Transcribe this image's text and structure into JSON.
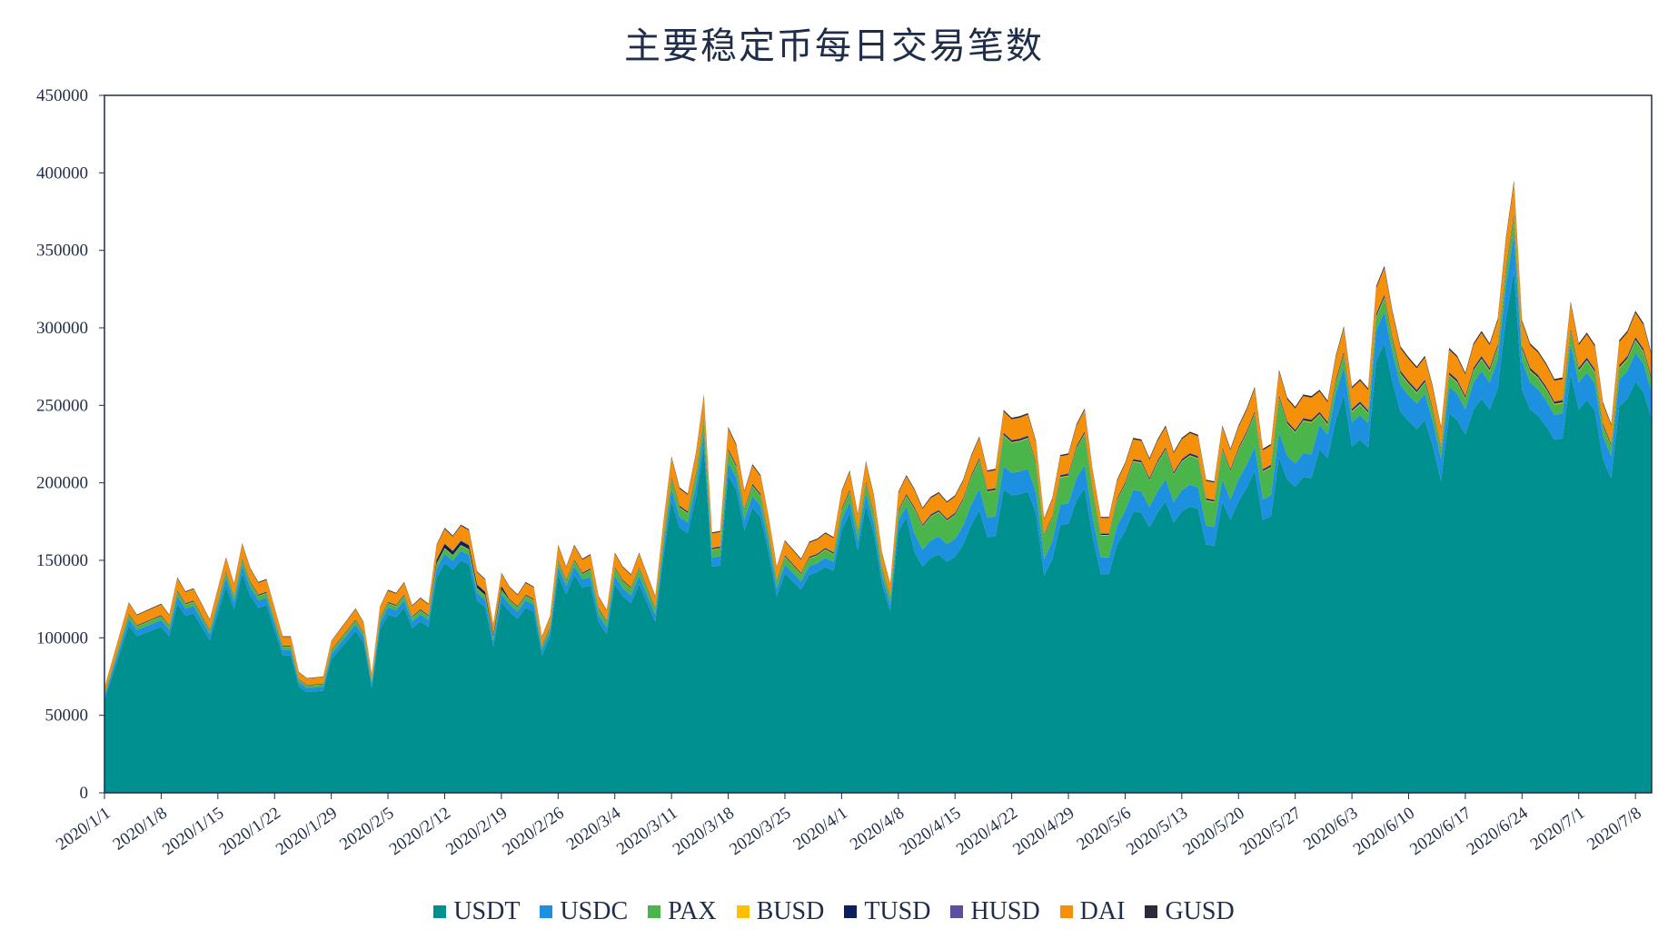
{
  "chart_data": {
    "type": "area",
    "stacked": true,
    "title": "主要稳定币每日交易笔数",
    "xlabel": "",
    "ylabel": "",
    "ylim": [
      0,
      450000
    ],
    "y_ticks": [
      "0",
      "50000",
      "100000",
      "150000",
      "200000",
      "250000",
      "300000",
      "350000",
      "400000",
      "450000"
    ],
    "x_tick_labels": [
      "2020/1/1",
      "2020/1/8",
      "2020/1/15",
      "2020/1/22",
      "2020/1/29",
      "2020/2/5",
      "2020/2/12",
      "2020/2/19",
      "2020/2/26",
      "2020/3/4",
      "2020/3/11",
      "2020/3/18",
      "2020/3/25",
      "2020/4/1",
      "2020/4/8",
      "2020/4/15",
      "2020/4/22",
      "2020/4/29",
      "2020/5/6",
      "2020/5/13",
      "2020/5/20",
      "2020/5/27",
      "2020/6/3",
      "2020/6/10",
      "2020/6/17",
      "2020/6/24",
      "2020/7/1",
      "2020/7/8"
    ],
    "x_start": "2020/1/1",
    "x_end": "2020/7/10",
    "legend_position": "bottom",
    "grid": false,
    "colors": {
      "USDT": "#009090",
      "USDC": "#1e90e0",
      "PAX": "#4ab54a",
      "BUSD": "#ffc000",
      "TUSD": "#0c1f5c",
      "HUSD": "#5a4fa0",
      "DAI": "#f5900a",
      "GUSD": "#2b2b3a"
    },
    "series_names": [
      "USDT",
      "USDC",
      "PAX",
      "BUSD",
      "TUSD",
      "HUSD",
      "DAI",
      "GUSD"
    ],
    "totals_anchor": [
      [
        0,
        68000
      ],
      [
        3,
        123000
      ],
      [
        4,
        115000
      ],
      [
        7,
        122000
      ],
      [
        8,
        115000
      ],
      [
        9,
        139000
      ],
      [
        10,
        130000
      ],
      [
        11,
        132000
      ],
      [
        12,
        122000
      ],
      [
        13,
        112000
      ],
      [
        15,
        152000
      ],
      [
        16,
        135000
      ],
      [
        17,
        161000
      ],
      [
        18,
        145000
      ],
      [
        19,
        136000
      ],
      [
        20,
        138000
      ],
      [
        22,
        101000
      ],
      [
        23,
        101000
      ],
      [
        24,
        78000
      ],
      [
        25,
        74000
      ],
      [
        27,
        75000
      ],
      [
        28,
        98000
      ],
      [
        31,
        119000
      ],
      [
        32,
        110000
      ],
      [
        33,
        77000
      ],
      [
        34,
        120000
      ],
      [
        35,
        131000
      ],
      [
        36,
        129000
      ],
      [
        37,
        136000
      ],
      [
        38,
        121000
      ],
      [
        39,
        126000
      ],
      [
        40,
        122000
      ],
      [
        41,
        160000
      ],
      [
        42,
        171000
      ],
      [
        43,
        166000
      ],
      [
        44,
        173000
      ],
      [
        45,
        170000
      ],
      [
        46,
        143000
      ],
      [
        47,
        138000
      ],
      [
        48,
        109000
      ],
      [
        49,
        142000
      ],
      [
        50,
        133000
      ],
      [
        51,
        128000
      ],
      [
        52,
        136000
      ],
      [
        53,
        133000
      ],
      [
        54,
        101000
      ],
      [
        55,
        114000
      ],
      [
        56,
        160000
      ],
      [
        57,
        146000
      ],
      [
        58,
        160000
      ],
      [
        59,
        151000
      ],
      [
        60,
        154000
      ],
      [
        61,
        127000
      ],
      [
        62,
        118000
      ],
      [
        63,
        155000
      ],
      [
        64,
        146000
      ],
      [
        65,
        141000
      ],
      [
        66,
        155000
      ],
      [
        67,
        141000
      ],
      [
        68,
        127000
      ],
      [
        69,
        175000
      ],
      [
        70,
        217000
      ],
      [
        71,
        197000
      ],
      [
        72,
        193000
      ],
      [
        73,
        219000
      ],
      [
        74,
        257000
      ],
      [
        75,
        168000
      ],
      [
        76,
        169000
      ],
      [
        77,
        236000
      ],
      [
        78,
        225000
      ],
      [
        79,
        195000
      ],
      [
        80,
        212000
      ],
      [
        81,
        205000
      ],
      [
        82,
        178000
      ],
      [
        83,
        146000
      ],
      [
        84,
        163000
      ],
      [
        85,
        157000
      ],
      [
        86,
        151000
      ],
      [
        87,
        162000
      ],
      [
        88,
        164000
      ],
      [
        89,
        168000
      ],
      [
        90,
        165000
      ],
      [
        91,
        195000
      ],
      [
        92,
        208000
      ],
      [
        93,
        180000
      ],
      [
        94,
        214000
      ],
      [
        95,
        192000
      ],
      [
        96,
        155000
      ],
      [
        97,
        135000
      ],
      [
        98,
        194000
      ],
      [
        99,
        205000
      ],
      [
        100,
        196000
      ],
      [
        101,
        184000
      ],
      [
        102,
        191000
      ],
      [
        103,
        194000
      ],
      [
        104,
        188000
      ],
      [
        105,
        192000
      ],
      [
        106,
        202000
      ],
      [
        107,
        218000
      ],
      [
        108,
        230000
      ],
      [
        109,
        208000
      ],
      [
        110,
        209000
      ],
      [
        111,
        247000
      ],
      [
        112,
        242000
      ],
      [
        113,
        243000
      ],
      [
        114,
        245000
      ],
      [
        115,
        227000
      ],
      [
        116,
        177000
      ],
      [
        117,
        190000
      ],
      [
        118,
        218000
      ],
      [
        119,
        219000
      ],
      [
        120,
        238000
      ],
      [
        121,
        248000
      ],
      [
        122,
        208000
      ],
      [
        123,
        178000
      ],
      [
        124,
        178000
      ],
      [
        125,
        202000
      ],
      [
        126,
        213000
      ],
      [
        127,
        229000
      ],
      [
        128,
        228000
      ],
      [
        129,
        216000
      ],
      [
        130,
        228000
      ],
      [
        131,
        237000
      ],
      [
        132,
        220000
      ],
      [
        133,
        229000
      ],
      [
        134,
        233000
      ],
      [
        135,
        231000
      ],
      [
        136,
        202000
      ],
      [
        137,
        201000
      ],
      [
        138,
        237000
      ],
      [
        139,
        222000
      ],
      [
        140,
        237000
      ],
      [
        141,
        248000
      ],
      [
        142,
        262000
      ],
      [
        143,
        222000
      ],
      [
        144,
        225000
      ],
      [
        145,
        273000
      ],
      [
        146,
        255000
      ],
      [
        147,
        249000
      ],
      [
        148,
        257000
      ],
      [
        149,
        256000
      ],
      [
        150,
        260000
      ],
      [
        151,
        253000
      ],
      [
        152,
        282000
      ],
      [
        153,
        301000
      ],
      [
        154,
        262000
      ],
      [
        155,
        267000
      ],
      [
        156,
        261000
      ],
      [
        157,
        327000
      ],
      [
        158,
        340000
      ],
      [
        159,
        311000
      ],
      [
        160,
        288000
      ],
      [
        161,
        281000
      ],
      [
        162,
        275000
      ],
      [
        163,
        282000
      ],
      [
        164,
        262000
      ],
      [
        165,
        236000
      ],
      [
        166,
        287000
      ],
      [
        167,
        282000
      ],
      [
        168,
        271000
      ],
      [
        169,
        290000
      ],
      [
        170,
        298000
      ],
      [
        171,
        290000
      ],
      [
        172,
        306000
      ],
      [
        173,
        358000
      ],
      [
        174,
        395000
      ],
      [
        175,
        305000
      ],
      [
        176,
        290000
      ],
      [
        177,
        285000
      ],
      [
        178,
        277000
      ],
      [
        179,
        267000
      ],
      [
        180,
        268000
      ],
      [
        181,
        317000
      ],
      [
        182,
        290000
      ],
      [
        183,
        297000
      ],
      [
        184,
        289000
      ],
      [
        185,
        252000
      ],
      [
        186,
        238000
      ],
      [
        187,
        292000
      ],
      [
        188,
        298000
      ],
      [
        189,
        311000
      ],
      [
        190,
        303000
      ],
      [
        191,
        283000
      ]
    ]
  },
  "legend": {
    "items": [
      {
        "label": "USDT",
        "color": "#009090"
      },
      {
        "label": "USDC",
        "color": "#1e90e0"
      },
      {
        "label": "PAX",
        "color": "#4ab54a"
      },
      {
        "label": "BUSD",
        "color": "#ffc000"
      },
      {
        "label": "TUSD",
        "color": "#0c1f5c"
      },
      {
        "label": "HUSD",
        "color": "#5a4fa0"
      },
      {
        "label": "DAI",
        "color": "#f5900a"
      },
      {
        "label": "GUSD",
        "color": "#2b2b3a"
      }
    ]
  }
}
